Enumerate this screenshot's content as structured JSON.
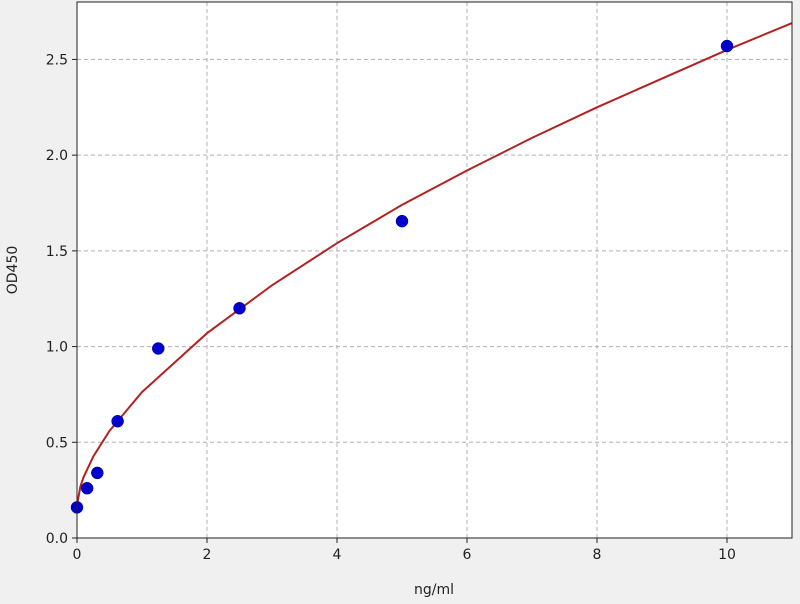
{
  "chart_data": {
    "type": "scatter",
    "title": "",
    "xlabel": "ng/ml",
    "ylabel": "OD450",
    "xlim": [
      0,
      11
    ],
    "ylim": [
      0,
      2.8
    ],
    "xticks": [
      0,
      2,
      4,
      6,
      8,
      10
    ],
    "yticks": [
      0.0,
      0.5,
      1.0,
      1.5,
      2.0,
      2.5
    ],
    "xtick_labels": [
      "0",
      "2",
      "4",
      "6",
      "8",
      "10"
    ],
    "ytick_labels": [
      "0.0",
      "0.5",
      "1.0",
      "1.5",
      "2.0",
      "2.5"
    ],
    "grid": true,
    "series": [
      {
        "kind": "points",
        "color": "#0000cc",
        "x": [
          0,
          0.156,
          0.3125,
          0.625,
          1.25,
          2.5,
          5,
          10
        ],
        "y": [
          0.16,
          0.26,
          0.34,
          0.61,
          0.99,
          1.2,
          1.655,
          2.57
        ]
      },
      {
        "kind": "fit-curve",
        "color": "#b22222",
        "x": [
          0,
          0.05,
          0.1,
          0.25,
          0.5,
          1,
          2,
          3,
          4,
          5,
          6,
          7,
          8,
          9,
          10,
          11
        ],
        "y": [
          0.17,
          0.267,
          0.317,
          0.426,
          0.56,
          0.762,
          1.07,
          1.32,
          1.54,
          1.74,
          1.92,
          2.09,
          2.25,
          2.4,
          2.55,
          2.69
        ]
      }
    ]
  }
}
